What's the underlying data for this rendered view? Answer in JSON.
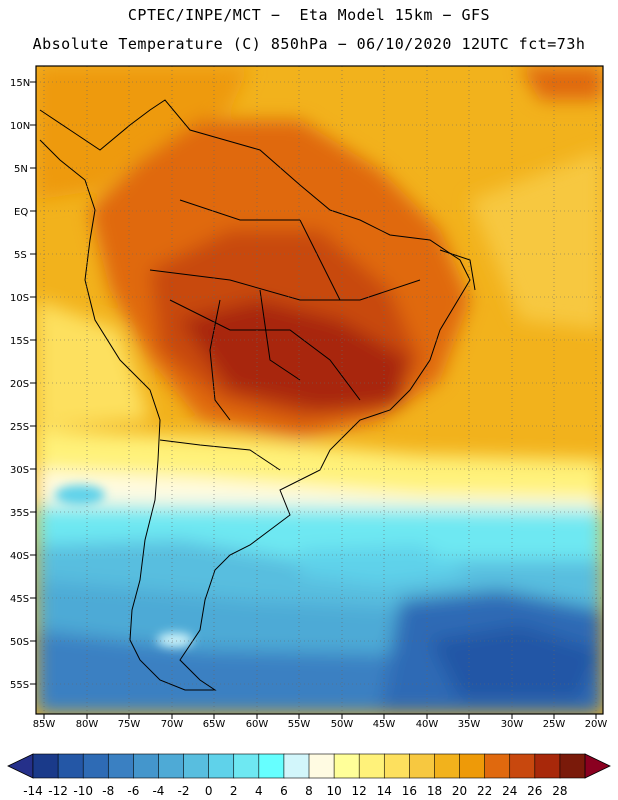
{
  "header": {
    "line1": "CPTEC/INPE/MCT −  Eta Model 15km − GFS",
    "line2": "Absolute Temperature (C) 850hPa − 06/10/2020 12UTC fct=73h"
  },
  "map": {
    "lat_labels": [
      "15N",
      "10N",
      "5N",
      "EQ",
      "5S",
      "10S",
      "15S",
      "20S",
      "25S",
      "30S",
      "35S",
      "40S",
      "45S",
      "50S",
      "55S"
    ],
    "lon_labels": [
      "85W",
      "80W",
      "75W",
      "70W",
      "65W",
      "60W",
      "55W",
      "50W",
      "45W",
      "40W",
      "35W",
      "30W",
      "25W",
      "20W"
    ]
  },
  "colorbar": {
    "labels": [
      "-14",
      "-12",
      "-10",
      "-8",
      "-6",
      "-4",
      "-2",
      "0",
      "2",
      "4",
      "6",
      "8",
      "10",
      "12",
      "14",
      "16",
      "18",
      "20",
      "22",
      "24",
      "26",
      "28"
    ],
    "colors": [
      "#1a3a8a",
      "#2457a6",
      "#2e6bb5",
      "#3a80c2",
      "#4496cc",
      "#4eaad6",
      "#58bedf",
      "#5fd2ea",
      "#6ee8f2",
      "#66ffff",
      "#d2f6fb",
      "#fffbe2",
      "#ffff99",
      "#fff27a",
      "#fde05e",
      "#f7c840",
      "#f2b21c",
      "#ee9a08",
      "#e0690e",
      "#c8480e",
      "#a8280a",
      "#7a1a0a"
    ],
    "under_color": "#25308a",
    "over_color": "#8a0020"
  }
}
